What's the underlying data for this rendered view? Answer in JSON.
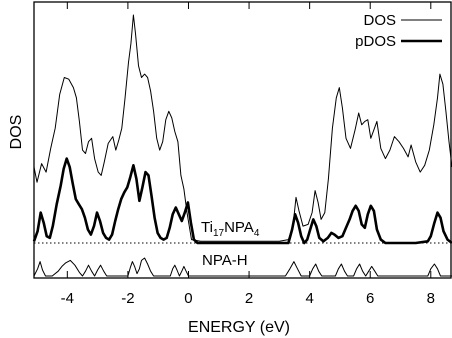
{
  "chart_data": {
    "type": "line",
    "xlabel": "ENERGY (eV)",
    "ylabel": "DOS",
    "xlim": [
      -5.1,
      8.7
    ],
    "xticks": [
      -4,
      -2,
      0,
      2,
      4,
      6,
      8
    ],
    "xtick_labels": [
      "-4",
      "-2",
      "0",
      "2",
      "4",
      "6",
      "8"
    ],
    "legend_position": "top-right",
    "legend": [
      {
        "label": "DOS",
        "style": "thin"
      },
      {
        "label": "pDOS",
        "style": "thick"
      }
    ],
    "annotations": [
      {
        "base": "Ti",
        "sub1": "17",
        "mid": "NPA",
        "sub2": "4"
      },
      {
        "base": "NPA",
        "sub1": "",
        "mid": "-H",
        "sub2": ""
      }
    ],
    "baseline": {
      "style": "dotted",
      "y": 0
    },
    "series": [
      {
        "name": "DOS",
        "points": [
          [
            -5.1,
            0.45
          ],
          [
            -5.0,
            0.36
          ],
          [
            -4.85,
            0.47
          ],
          [
            -4.7,
            0.42
          ],
          [
            -4.55,
            0.56
          ],
          [
            -4.4,
            0.68
          ],
          [
            -4.25,
            0.88
          ],
          [
            -4.1,
            0.98
          ],
          [
            -3.95,
            0.97
          ],
          [
            -3.8,
            0.92
          ],
          [
            -3.7,
            0.86
          ],
          [
            -3.6,
            0.72
          ],
          [
            -3.5,
            0.55
          ],
          [
            -3.4,
            0.53
          ],
          [
            -3.3,
            0.6
          ],
          [
            -3.2,
            0.62
          ],
          [
            -3.1,
            0.5
          ],
          [
            -2.98,
            0.42
          ],
          [
            -2.88,
            0.4
          ],
          [
            -2.78,
            0.48
          ],
          [
            -2.65,
            0.59
          ],
          [
            -2.5,
            0.63
          ],
          [
            -2.4,
            0.55
          ],
          [
            -2.3,
            0.61
          ],
          [
            -2.2,
            0.68
          ],
          [
            -2.1,
            0.85
          ],
          [
            -1.98,
            1.07
          ],
          [
            -1.9,
            1.18
          ],
          [
            -1.82,
            1.35
          ],
          [
            -1.75,
            1.24
          ],
          [
            -1.65,
            1.05
          ],
          [
            -1.55,
            0.98
          ],
          [
            -1.45,
            1.0
          ],
          [
            -1.35,
            0.98
          ],
          [
            -1.25,
            0.9
          ],
          [
            -1.15,
            0.78
          ],
          [
            -1.05,
            0.62
          ],
          [
            -0.95,
            0.55
          ],
          [
            -0.85,
            0.6
          ],
          [
            -0.75,
            0.73
          ],
          [
            -0.65,
            0.78
          ],
          [
            -0.55,
            0.74
          ],
          [
            -0.45,
            0.66
          ],
          [
            -0.35,
            0.6
          ],
          [
            -0.25,
            0.4
          ],
          [
            -0.15,
            0.32
          ],
          [
            -0.05,
            0.18
          ],
          [
            0.1,
            0.02
          ],
          [
            0.4,
            0.01
          ],
          [
            1.0,
            0.01
          ],
          [
            2.0,
            0.01
          ],
          [
            3.0,
            0.01
          ],
          [
            3.3,
            0.02
          ],
          [
            3.45,
            0.1
          ],
          [
            3.55,
            0.27
          ],
          [
            3.65,
            0.19
          ],
          [
            3.78,
            0.1
          ],
          [
            3.95,
            0.11
          ],
          [
            4.08,
            0.18
          ],
          [
            4.18,
            0.31
          ],
          [
            4.28,
            0.24
          ],
          [
            4.38,
            0.14
          ],
          [
            4.5,
            0.18
          ],
          [
            4.62,
            0.38
          ],
          [
            4.75,
            0.68
          ],
          [
            4.88,
            0.86
          ],
          [
            4.98,
            0.92
          ],
          [
            5.08,
            0.8
          ],
          [
            5.2,
            0.62
          ],
          [
            5.35,
            0.56
          ],
          [
            5.5,
            0.67
          ],
          [
            5.62,
            0.77
          ],
          [
            5.72,
            0.7
          ],
          [
            5.82,
            0.72
          ],
          [
            5.92,
            0.73
          ],
          [
            6.02,
            0.62
          ],
          [
            6.12,
            0.67
          ],
          [
            6.22,
            0.72
          ],
          [
            6.35,
            0.56
          ],
          [
            6.5,
            0.5
          ],
          [
            6.65,
            0.55
          ],
          [
            6.8,
            0.63
          ],
          [
            6.95,
            0.6
          ],
          [
            7.1,
            0.56
          ],
          [
            7.25,
            0.51
          ],
          [
            7.35,
            0.58
          ],
          [
            7.5,
            0.48
          ],
          [
            7.65,
            0.42
          ],
          [
            7.8,
            0.46
          ],
          [
            7.95,
            0.55
          ],
          [
            8.1,
            0.7
          ],
          [
            8.22,
            0.86
          ],
          [
            8.3,
            1.0
          ],
          [
            8.4,
            0.94
          ],
          [
            8.5,
            0.78
          ],
          [
            8.6,
            0.6
          ],
          [
            8.7,
            0.45
          ]
        ]
      },
      {
        "name": "pDOS",
        "points": [
          [
            -5.1,
            0.01
          ],
          [
            -4.98,
            0.07
          ],
          [
            -4.88,
            0.18
          ],
          [
            -4.78,
            0.12
          ],
          [
            -4.68,
            0.04
          ],
          [
            -4.58,
            0.03
          ],
          [
            -4.48,
            0.1
          ],
          [
            -4.35,
            0.23
          ],
          [
            -4.22,
            0.34
          ],
          [
            -4.12,
            0.44
          ],
          [
            -4.02,
            0.5
          ],
          [
            -3.92,
            0.45
          ],
          [
            -3.82,
            0.35
          ],
          [
            -3.72,
            0.26
          ],
          [
            -3.62,
            0.23
          ],
          [
            -3.52,
            0.2
          ],
          [
            -3.42,
            0.15
          ],
          [
            -3.32,
            0.08
          ],
          [
            -3.22,
            0.05
          ],
          [
            -3.12,
            0.1
          ],
          [
            -3.02,
            0.18
          ],
          [
            -2.92,
            0.13
          ],
          [
            -2.82,
            0.06
          ],
          [
            -2.72,
            0.03
          ],
          [
            -2.62,
            0.02
          ],
          [
            -2.52,
            0.05
          ],
          [
            -2.42,
            0.13
          ],
          [
            -2.32,
            0.2
          ],
          [
            -2.22,
            0.26
          ],
          [
            -2.12,
            0.3
          ],
          [
            -2.02,
            0.33
          ],
          [
            -1.92,
            0.39
          ],
          [
            -1.82,
            0.46
          ],
          [
            -1.72,
            0.38
          ],
          [
            -1.62,
            0.25
          ],
          [
            -1.52,
            0.33
          ],
          [
            -1.42,
            0.42
          ],
          [
            -1.32,
            0.4
          ],
          [
            -1.22,
            0.28
          ],
          [
            -1.12,
            0.15
          ],
          [
            -1.02,
            0.06
          ],
          [
            -0.92,
            0.03
          ],
          [
            -0.82,
            0.02
          ],
          [
            -0.72,
            0.03
          ],
          [
            -0.62,
            0.09
          ],
          [
            -0.52,
            0.17
          ],
          [
            -0.42,
            0.21
          ],
          [
            -0.32,
            0.17
          ],
          [
            -0.22,
            0.13
          ],
          [
            -0.12,
            0.18
          ],
          [
            -0.02,
            0.24
          ],
          [
            0.08,
            0.12
          ],
          [
            0.18,
            0.02
          ],
          [
            0.3,
            0.0
          ],
          [
            1.0,
            0.0
          ],
          [
            2.0,
            0.0
          ],
          [
            3.0,
            0.0
          ],
          [
            3.3,
            0.0
          ],
          [
            3.42,
            0.08
          ],
          [
            3.52,
            0.17
          ],
          [
            3.62,
            0.12
          ],
          [
            3.72,
            0.04
          ],
          [
            3.82,
            0.0
          ],
          [
            3.92,
            0.02
          ],
          [
            4.02,
            0.08
          ],
          [
            4.12,
            0.14
          ],
          [
            4.22,
            0.1
          ],
          [
            4.32,
            0.03
          ],
          [
            4.45,
            0.01
          ],
          [
            4.6,
            0.03
          ],
          [
            4.72,
            0.06
          ],
          [
            4.82,
            0.05
          ],
          [
            4.95,
            0.03
          ],
          [
            5.08,
            0.04
          ],
          [
            5.2,
            0.09
          ],
          [
            5.32,
            0.14
          ],
          [
            5.42,
            0.19
          ],
          [
            5.52,
            0.22
          ],
          [
            5.62,
            0.19
          ],
          [
            5.72,
            0.11
          ],
          [
            5.82,
            0.09
          ],
          [
            5.92,
            0.17
          ],
          [
            6.02,
            0.22
          ],
          [
            6.12,
            0.19
          ],
          [
            6.22,
            0.08
          ],
          [
            6.35,
            0.02
          ],
          [
            6.5,
            0.0
          ],
          [
            7.0,
            0.0
          ],
          [
            7.5,
            0.0
          ],
          [
            7.9,
            0.01
          ],
          [
            8.0,
            0.04
          ],
          [
            8.12,
            0.12
          ],
          [
            8.22,
            0.18
          ],
          [
            8.32,
            0.15
          ],
          [
            8.42,
            0.07
          ],
          [
            8.55,
            0.02
          ],
          [
            8.7,
            0.0
          ]
        ]
      },
      {
        "name": "NPA-H",
        "points": [
          [
            -5.1,
            0.0
          ],
          [
            -4.98,
            0.03
          ],
          [
            -4.9,
            0.06
          ],
          [
            -4.82,
            0.025
          ],
          [
            -4.72,
            0.0
          ],
          [
            -4.5,
            0.0
          ],
          [
            -4.3,
            0.02
          ],
          [
            -4.18,
            0.04
          ],
          [
            -4.05,
            0.055
          ],
          [
            -3.9,
            0.065
          ],
          [
            -3.75,
            0.045
          ],
          [
            -3.6,
            0.015
          ],
          [
            -3.5,
            0.0
          ],
          [
            -3.4,
            0.02
          ],
          [
            -3.3,
            0.045
          ],
          [
            -3.2,
            0.02
          ],
          [
            -3.1,
            0.0
          ],
          [
            -3.0,
            0.025
          ],
          [
            -2.9,
            0.045
          ],
          [
            -2.8,
            0.02
          ],
          [
            -2.7,
            0.0
          ],
          [
            -2.0,
            0.0
          ],
          [
            -1.92,
            0.035
          ],
          [
            -1.85,
            0.06
          ],
          [
            -1.78,
            0.04
          ],
          [
            -1.7,
            0.01
          ],
          [
            -1.62,
            0.03
          ],
          [
            -1.55,
            0.065
          ],
          [
            -1.45,
            0.075
          ],
          [
            -1.35,
            0.05
          ],
          [
            -1.25,
            0.02
          ],
          [
            -1.15,
            0.0
          ],
          [
            -0.6,
            0.0
          ],
          [
            -0.52,
            0.03
          ],
          [
            -0.45,
            0.045
          ],
          [
            -0.38,
            0.025
          ],
          [
            -0.3,
            0.0
          ],
          [
            -0.22,
            0.02
          ],
          [
            -0.15,
            0.04
          ],
          [
            -0.08,
            0.02
          ],
          [
            0.0,
            0.0
          ],
          [
            3.2,
            0.0
          ],
          [
            3.35,
            0.03
          ],
          [
            3.48,
            0.06
          ],
          [
            3.6,
            0.03
          ],
          [
            3.72,
            0.0
          ],
          [
            4.0,
            0.0
          ],
          [
            4.1,
            0.03
          ],
          [
            4.2,
            0.05
          ],
          [
            4.3,
            0.02
          ],
          [
            4.4,
            0.0
          ],
          [
            4.85,
            0.0
          ],
          [
            4.95,
            0.03
          ],
          [
            5.05,
            0.05
          ],
          [
            5.15,
            0.02
          ],
          [
            5.25,
            0.0
          ],
          [
            5.45,
            0.0
          ],
          [
            5.55,
            0.03
          ],
          [
            5.65,
            0.05
          ],
          [
            5.75,
            0.02
          ],
          [
            5.85,
            0.0
          ],
          [
            5.95,
            0.02
          ],
          [
            6.05,
            0.04
          ],
          [
            6.15,
            0.02
          ],
          [
            6.25,
            0.0
          ],
          [
            7.9,
            0.0
          ],
          [
            8.0,
            0.03
          ],
          [
            8.12,
            0.05
          ],
          [
            8.22,
            0.03
          ],
          [
            8.32,
            0.0
          ],
          [
            8.7,
            0.0
          ]
        ]
      }
    ]
  }
}
